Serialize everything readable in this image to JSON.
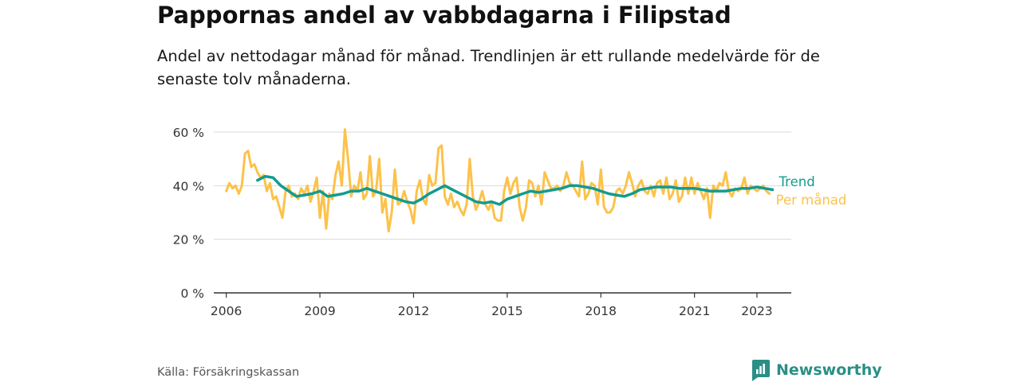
{
  "title": "Pappornas andel av vabbdagarna i Filipstad",
  "subtitle": "Andel av nettodagar månad för månad. Trendlinjen är ett rullande medelvärde för de senaste tolv månaderna.",
  "source": "Källa: Försäkringskassan",
  "brand": "Newsworthy",
  "colors": {
    "trend": "#139b8f",
    "monthly": "#fcc24a",
    "grid": "#d9d9d9",
    "axis": "#333333",
    "brand": "#2a8f86"
  },
  "chart_data": {
    "type": "line",
    "title": "Pappornas andel av vabbdagarna i Filipstad",
    "y_tick_labels": [
      "0 %",
      "20 %",
      "40 %",
      "60 %"
    ],
    "y_ticks": [
      0,
      20,
      40,
      60
    ],
    "ylim": [
      0,
      60
    ],
    "x_ticks": [
      2006,
      2009,
      2012,
      2015,
      2018,
      2021,
      2023
    ],
    "xlim": [
      2005.6,
      2024.1
    ],
    "grid": true,
    "legend": "inline-right",
    "series": [
      {
        "name": "Trend",
        "color": "#139b8f",
        "points": [
          [
            2007.0,
            42
          ],
          [
            2007.25,
            43.5
          ],
          [
            2007.5,
            43
          ],
          [
            2007.75,
            40
          ],
          [
            2008.0,
            38
          ],
          [
            2008.25,
            36
          ],
          [
            2008.5,
            36.5
          ],
          [
            2008.75,
            37
          ],
          [
            2009.0,
            38
          ],
          [
            2009.25,
            36
          ],
          [
            2009.5,
            36.5
          ],
          [
            2009.75,
            37
          ],
          [
            2010.0,
            38
          ],
          [
            2010.25,
            38
          ],
          [
            2010.5,
            39
          ],
          [
            2010.75,
            38
          ],
          [
            2011.0,
            37
          ],
          [
            2011.25,
            36
          ],
          [
            2011.5,
            35
          ],
          [
            2011.75,
            34
          ],
          [
            2012.0,
            33.5
          ],
          [
            2012.25,
            35
          ],
          [
            2012.5,
            37
          ],
          [
            2012.75,
            38.5
          ],
          [
            2013.0,
            40
          ],
          [
            2013.25,
            38.5
          ],
          [
            2013.5,
            37
          ],
          [
            2013.75,
            35.5
          ],
          [
            2014.0,
            34
          ],
          [
            2014.25,
            33.5
          ],
          [
            2014.5,
            34
          ],
          [
            2014.75,
            33
          ],
          [
            2015.0,
            35
          ],
          [
            2015.25,
            36
          ],
          [
            2015.5,
            37
          ],
          [
            2015.75,
            38
          ],
          [
            2016.0,
            37.5
          ],
          [
            2016.25,
            38
          ],
          [
            2016.5,
            38.5
          ],
          [
            2016.75,
            39
          ],
          [
            2017.0,
            40
          ],
          [
            2017.25,
            40
          ],
          [
            2017.5,
            39.5
          ],
          [
            2017.75,
            39
          ],
          [
            2018.0,
            38
          ],
          [
            2018.25,
            37
          ],
          [
            2018.5,
            36.5
          ],
          [
            2018.75,
            36
          ],
          [
            2019.0,
            37
          ],
          [
            2019.25,
            38.5
          ],
          [
            2019.5,
            39
          ],
          [
            2019.75,
            39.5
          ],
          [
            2020.0,
            39.5
          ],
          [
            2020.25,
            39.5
          ],
          [
            2020.5,
            39
          ],
          [
            2020.75,
            39
          ],
          [
            2021.0,
            39
          ],
          [
            2021.25,
            38.5
          ],
          [
            2021.5,
            38
          ],
          [
            2021.75,
            38
          ],
          [
            2022.0,
            38
          ],
          [
            2022.25,
            38.5
          ],
          [
            2022.5,
            39
          ],
          [
            2022.75,
            39
          ],
          [
            2023.0,
            39.5
          ],
          [
            2023.25,
            39
          ],
          [
            2023.5,
            38.5
          ]
        ]
      },
      {
        "name": "Per månad",
        "color": "#fcc24a",
        "points": [
          [
            2006.0,
            38
          ],
          [
            2006.1,
            41
          ],
          [
            2006.2,
            39
          ],
          [
            2006.3,
            40
          ],
          [
            2006.4,
            37
          ],
          [
            2006.5,
            40
          ],
          [
            2006.6,
            52
          ],
          [
            2006.7,
            53
          ],
          [
            2006.8,
            47
          ],
          [
            2006.9,
            48
          ],
          [
            2007.0,
            45
          ],
          [
            2007.1,
            43
          ],
          [
            2007.2,
            44
          ],
          [
            2007.3,
            38
          ],
          [
            2007.4,
            41
          ],
          [
            2007.5,
            35
          ],
          [
            2007.6,
            36
          ],
          [
            2007.7,
            32
          ],
          [
            2007.8,
            28
          ],
          [
            2007.9,
            38
          ],
          [
            2008.0,
            40
          ],
          [
            2008.1,
            36
          ],
          [
            2008.2,
            37
          ],
          [
            2008.3,
            35
          ],
          [
            2008.4,
            39
          ],
          [
            2008.5,
            37
          ],
          [
            2008.6,
            40
          ],
          [
            2008.7,
            34
          ],
          [
            2008.8,
            38
          ],
          [
            2008.9,
            43
          ],
          [
            2009.0,
            28
          ],
          [
            2009.1,
            38
          ],
          [
            2009.2,
            24
          ],
          [
            2009.3,
            37
          ],
          [
            2009.4,
            35
          ],
          [
            2009.5,
            44
          ],
          [
            2009.6,
            49
          ],
          [
            2009.7,
            40
          ],
          [
            2009.8,
            61
          ],
          [
            2009.9,
            50
          ],
          [
            2010.0,
            36
          ],
          [
            2010.1,
            40
          ],
          [
            2010.2,
            38
          ],
          [
            2010.3,
            45
          ],
          [
            2010.4,
            35
          ],
          [
            2010.5,
            37
          ],
          [
            2010.6,
            51
          ],
          [
            2010.7,
            36
          ],
          [
            2010.8,
            38
          ],
          [
            2010.9,
            50
          ],
          [
            2011.0,
            30
          ],
          [
            2011.1,
            35
          ],
          [
            2011.2,
            23
          ],
          [
            2011.3,
            30
          ],
          [
            2011.4,
            46
          ],
          [
            2011.5,
            33
          ],
          [
            2011.6,
            34
          ],
          [
            2011.7,
            38
          ],
          [
            2011.8,
            34
          ],
          [
            2011.9,
            31
          ],
          [
            2012.0,
            26
          ],
          [
            2012.1,
            38
          ],
          [
            2012.2,
            42
          ],
          [
            2012.3,
            35
          ],
          [
            2012.4,
            33
          ],
          [
            2012.5,
            44
          ],
          [
            2012.6,
            40
          ],
          [
            2012.7,
            41
          ],
          [
            2012.8,
            54
          ],
          [
            2012.9,
            55
          ],
          [
            2013.0,
            36
          ],
          [
            2013.1,
            33
          ],
          [
            2013.2,
            37
          ],
          [
            2013.3,
            32
          ],
          [
            2013.4,
            34
          ],
          [
            2013.5,
            31
          ],
          [
            2013.6,
            29
          ],
          [
            2013.7,
            33
          ],
          [
            2013.8,
            50
          ],
          [
            2013.9,
            36
          ],
          [
            2014.0,
            31
          ],
          [
            2014.1,
            34
          ],
          [
            2014.2,
            38
          ],
          [
            2014.3,
            33
          ],
          [
            2014.4,
            31
          ],
          [
            2014.5,
            34
          ],
          [
            2014.6,
            28
          ],
          [
            2014.7,
            27
          ],
          [
            2014.8,
            27
          ],
          [
            2014.9,
            38
          ],
          [
            2015.0,
            43
          ],
          [
            2015.1,
            37
          ],
          [
            2015.2,
            41
          ],
          [
            2015.3,
            43
          ],
          [
            2015.4,
            32
          ],
          [
            2015.5,
            27
          ],
          [
            2015.6,
            32
          ],
          [
            2015.7,
            42
          ],
          [
            2015.8,
            41
          ],
          [
            2015.9,
            36
          ],
          [
            2016.0,
            40
          ],
          [
            2016.1,
            33
          ],
          [
            2016.2,
            45
          ],
          [
            2016.3,
            42
          ],
          [
            2016.4,
            39
          ],
          [
            2016.5,
            39
          ],
          [
            2016.6,
            40
          ],
          [
            2016.7,
            38
          ],
          [
            2016.8,
            40
          ],
          [
            2016.9,
            45
          ],
          [
            2017.0,
            41
          ],
          [
            2017.1,
            40
          ],
          [
            2017.2,
            38
          ],
          [
            2017.3,
            36
          ],
          [
            2017.4,
            49
          ],
          [
            2017.5,
            35
          ],
          [
            2017.6,
            37
          ],
          [
            2017.7,
            41
          ],
          [
            2017.8,
            40
          ],
          [
            2017.9,
            33
          ],
          [
            2018.0,
            46
          ],
          [
            2018.1,
            32
          ],
          [
            2018.2,
            30
          ],
          [
            2018.3,
            30
          ],
          [
            2018.4,
            32
          ],
          [
            2018.5,
            38
          ],
          [
            2018.6,
            39
          ],
          [
            2018.7,
            37
          ],
          [
            2018.8,
            40
          ],
          [
            2018.9,
            45
          ],
          [
            2019.0,
            41
          ],
          [
            2019.1,
            36
          ],
          [
            2019.2,
            40
          ],
          [
            2019.3,
            42
          ],
          [
            2019.4,
            38
          ],
          [
            2019.5,
            37
          ],
          [
            2019.6,
            40
          ],
          [
            2019.7,
            36
          ],
          [
            2019.8,
            41
          ],
          [
            2019.9,
            42
          ],
          [
            2020.0,
            37
          ],
          [
            2020.1,
            43
          ],
          [
            2020.2,
            35
          ],
          [
            2020.3,
            37
          ],
          [
            2020.4,
            42
          ],
          [
            2020.5,
            34
          ],
          [
            2020.6,
            36
          ],
          [
            2020.7,
            43
          ],
          [
            2020.8,
            37
          ],
          [
            2020.9,
            43
          ],
          [
            2021.0,
            37
          ],
          [
            2021.1,
            41
          ],
          [
            2021.2,
            38
          ],
          [
            2021.3,
            35
          ],
          [
            2021.4,
            39
          ],
          [
            2021.5,
            28
          ],
          [
            2021.6,
            40
          ],
          [
            2021.7,
            38
          ],
          [
            2021.8,
            41
          ],
          [
            2021.9,
            40
          ],
          [
            2022.0,
            45
          ],
          [
            2022.1,
            38
          ],
          [
            2022.2,
            36
          ],
          [
            2022.3,
            39
          ],
          [
            2022.4,
            38
          ],
          [
            2022.5,
            39
          ],
          [
            2022.6,
            43
          ],
          [
            2022.7,
            37
          ],
          [
            2022.8,
            40
          ],
          [
            2022.9,
            39
          ],
          [
            2023.0,
            38
          ],
          [
            2023.1,
            39
          ],
          [
            2023.2,
            40
          ],
          [
            2023.3,
            38
          ],
          [
            2023.4,
            37
          ]
        ]
      }
    ]
  }
}
